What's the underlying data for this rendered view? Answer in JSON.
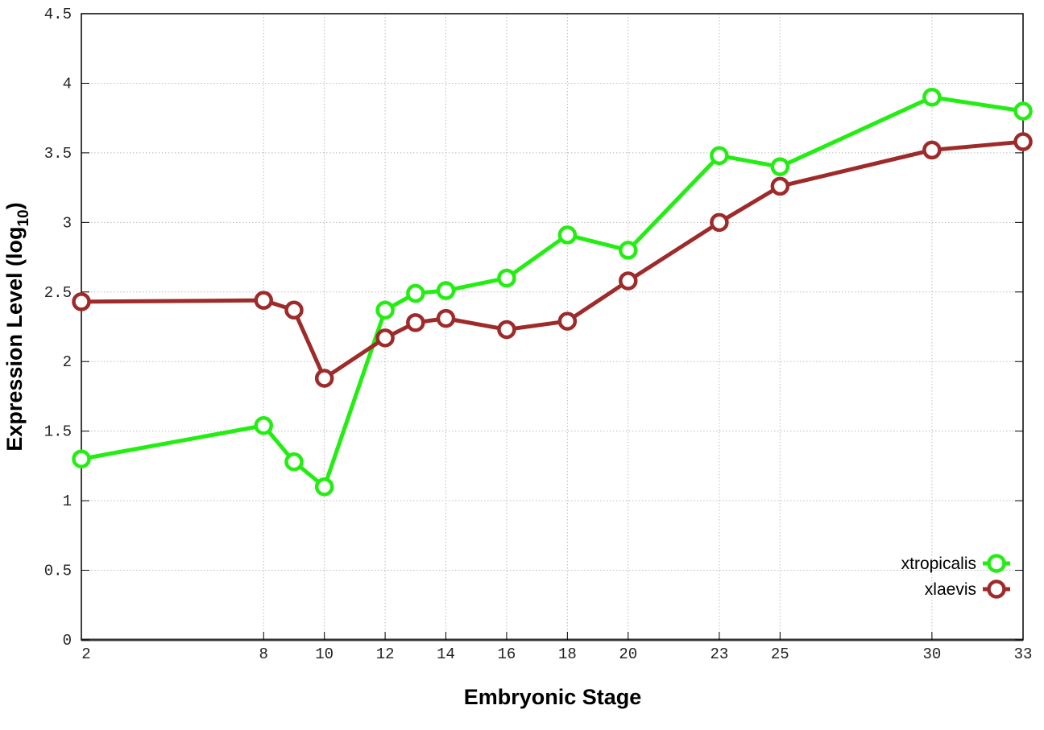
{
  "chart_data": {
    "type": "line",
    "title": "",
    "xlabel": "Embryonic Stage",
    "ylabel": "Expression Level (log",
    "ylabel_subscript": "10",
    "ylabel_close": ")",
    "xlim": [
      2,
      33
    ],
    "ylim": [
      0,
      4.5
    ],
    "x_ticks": [
      2,
      8,
      10,
      12,
      14,
      16,
      18,
      20,
      23,
      25,
      30,
      33
    ],
    "y_ticks": [
      "0",
      "0.5",
      "1",
      "1.5",
      "2",
      "2.5",
      "3",
      "3.5",
      "4",
      "4.5"
    ],
    "grid": true,
    "legend_position": "bottom-right",
    "x": [
      2,
      8,
      9,
      10,
      12,
      13,
      14,
      16,
      18,
      20,
      23,
      25,
      30,
      33
    ],
    "series": [
      {
        "name": "xtropicalis",
        "color": "#22ee11",
        "values": [
          1.3,
          1.54,
          1.28,
          1.1,
          2.37,
          2.49,
          2.51,
          2.6,
          2.91,
          2.8,
          3.48,
          3.4,
          3.9,
          3.8
        ]
      },
      {
        "name": "xlaevis",
        "color": "#9e2a2a",
        "values": [
          2.43,
          2.44,
          2.37,
          1.88,
          2.17,
          2.28,
          2.31,
          2.23,
          2.29,
          2.58,
          3.0,
          3.26,
          3.52,
          3.58
        ]
      }
    ]
  }
}
